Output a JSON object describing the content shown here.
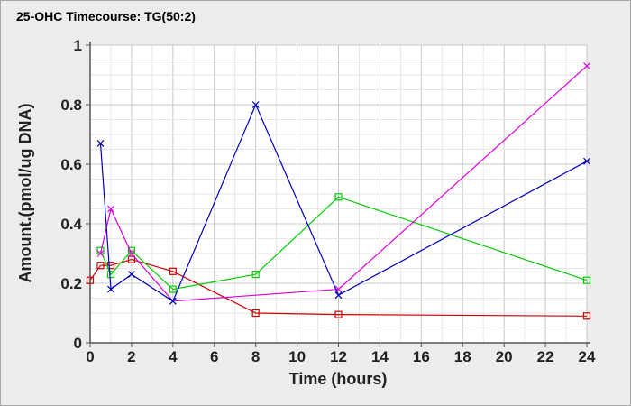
{
  "chart_data": {
    "type": "line",
    "title": "25-OHC Timecourse: TG(50:2)",
    "xlabel": "Time (hours)",
    "ylabel": "Amount.(pmol/ug DNA)",
    "xlim": [
      0,
      24
    ],
    "ylim": [
      0,
      1
    ],
    "xticks": [
      "0",
      "2",
      "4",
      "6",
      "8",
      "10",
      "12",
      "14",
      "16",
      "18",
      "20",
      "22",
      "24"
    ],
    "yticks": [
      "0",
      "0.2",
      "0.4",
      "0.6",
      "0.8",
      "1"
    ],
    "grid": true,
    "series": [
      {
        "color": "#cc0000",
        "marker": "square",
        "points": [
          [
            0,
            0.21
          ],
          [
            0.5,
            0.26
          ],
          [
            1,
            0.26
          ],
          [
            2,
            0.28
          ],
          [
            4,
            0.24
          ],
          [
            8,
            0.1
          ],
          [
            12,
            0.095
          ],
          [
            24,
            0.09
          ]
        ]
      },
      {
        "color": "#00cc00",
        "marker": "square",
        "points": [
          [
            0.5,
            0.31
          ],
          [
            1,
            0.23
          ],
          [
            2,
            0.31
          ],
          [
            4,
            0.18
          ],
          [
            8,
            0.23
          ],
          [
            12,
            0.49
          ],
          [
            24,
            0.21
          ]
        ]
      },
      {
        "color": "#dd00dd",
        "marker": "x",
        "points": [
          [
            0.5,
            0.3
          ],
          [
            1,
            0.45
          ],
          [
            2,
            0.3
          ],
          [
            4,
            0.14
          ],
          [
            12,
            0.18
          ],
          [
            24,
            0.93
          ]
        ]
      },
      {
        "color": "#0000bb",
        "marker": "x",
        "points": [
          [
            0.5,
            0.67
          ],
          [
            1,
            0.18
          ],
          [
            2,
            0.23
          ],
          [
            4,
            0.14
          ],
          [
            8,
            0.8
          ],
          [
            12,
            0.16
          ],
          [
            24,
            0.61
          ]
        ]
      }
    ]
  }
}
